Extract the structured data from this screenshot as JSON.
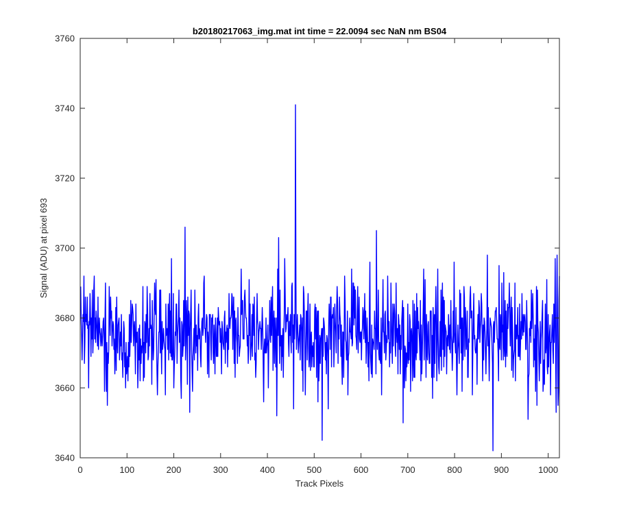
{
  "chart_data": {
    "type": "line",
    "title": "b20180217063_img.mat int time = 22.0094 sec  NaN nm BS04",
    "xlabel": "Track Pixels",
    "ylabel": "Signal (ADU) at pixel 693",
    "xlim": [
      0,
      1024
    ],
    "ylim": [
      3640,
      3760
    ],
    "xticks": [
      "0",
      "100",
      "200",
      "300",
      "400",
      "500",
      "600",
      "700",
      "800",
      "900",
      "1000"
    ],
    "yticks": [
      "3640",
      "3660",
      "3680",
      "3700",
      "3720",
      "3740",
      "3760"
    ],
    "grid": false,
    "line_color": "#0000ff",
    "series": [
      {
        "x_start": 1,
        "x_step": 1,
        "baseline_mean": 3675.5,
        "noise_range": [
          3650,
          3700
        ],
        "notable_points": [
          {
            "x": 224,
            "y": 3706
          },
          {
            "x": 234,
            "y": 3653
          },
          {
            "x": 420,
            "y": 3652
          },
          {
            "x": 424,
            "y": 3703
          },
          {
            "x": 456,
            "y": 3654
          },
          {
            "x": 460,
            "y": 3741
          },
          {
            "x": 517,
            "y": 3645
          },
          {
            "x": 633,
            "y": 3705
          },
          {
            "x": 690,
            "y": 3650
          },
          {
            "x": 870,
            "y": 3698
          },
          {
            "x": 882,
            "y": 3642
          },
          {
            "x": 957,
            "y": 3651
          },
          {
            "x": 1017,
            "y": 3653
          },
          {
            "x": 1019,
            "y": 3698
          }
        ],
        "n_points": 1024
      }
    ]
  }
}
